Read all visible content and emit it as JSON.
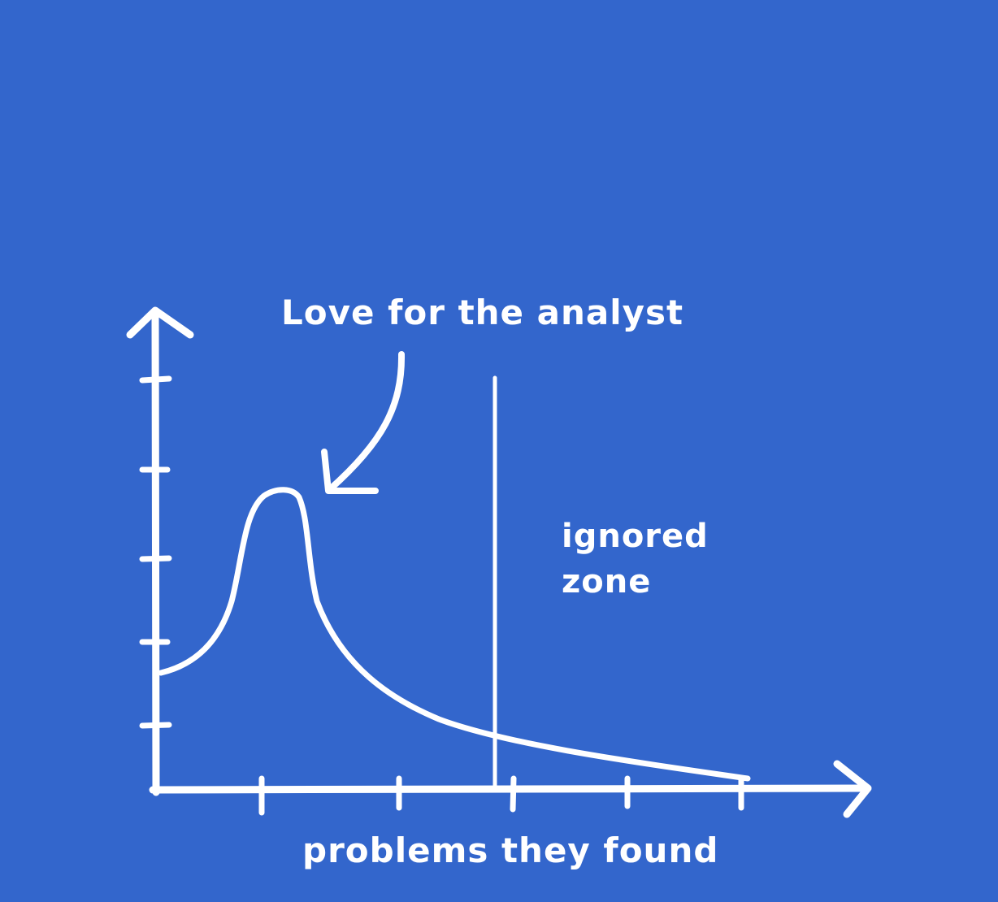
{
  "annotation": {
    "text": "Love for the analyst"
  },
  "zone": {
    "line1": "ignored",
    "line2": "zone"
  },
  "axes": {
    "x_label": "problems they found"
  },
  "colors": {
    "background": "#3366cc",
    "ink": "#ffffff"
  },
  "chart_data": {
    "type": "line",
    "style": "hand-drawn sketch",
    "title": "",
    "xlabel": "problems they found",
    "ylabel": "",
    "annotations": [
      "Love for the analyst",
      "ignored zone"
    ],
    "shape": "rises to a sharp early peak, then decays in a long tail approaching the x-axis",
    "grid": false
  }
}
